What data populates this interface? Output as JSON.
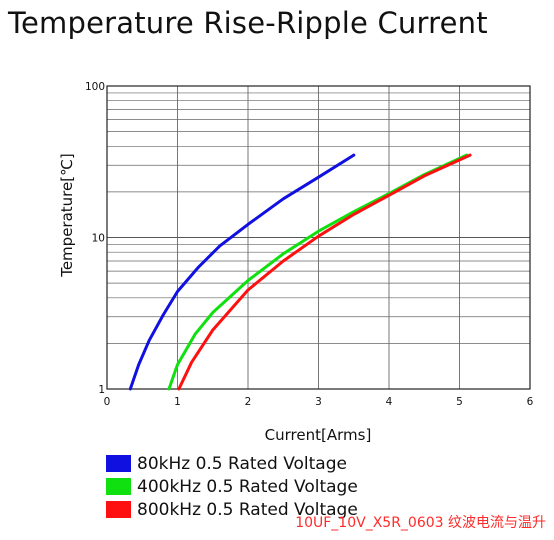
{
  "title": "Temperature Rise-Ripple Current",
  "watermark": "10UF_10V_X5R_0603 纹波电流与温升",
  "chart_data": {
    "type": "line",
    "title": "Temperature Rise-Ripple Current",
    "xlabel": "Current[Arms]",
    "ylabel": "Temperature[℃]",
    "xlim": [
      0,
      6
    ],
    "ylim": [
      1,
      100
    ],
    "yscale": "log",
    "x_ticks": [
      "0",
      "1",
      "2",
      "3",
      "4",
      "5",
      "6"
    ],
    "y_ticks": [
      "1",
      "10",
      "100"
    ],
    "grid": true,
    "legend_position": "bottom",
    "series": [
      {
        "name": "80kHz 0.5 Rated Voltage",
        "color": "#1010e0",
        "points": [
          [
            0.33,
            1.0
          ],
          [
            0.45,
            1.45
          ],
          [
            0.6,
            2.1
          ],
          [
            0.8,
            3.1
          ],
          [
            1.0,
            4.4
          ],
          [
            1.3,
            6.4
          ],
          [
            1.6,
            8.8
          ],
          [
            2.0,
            12.2
          ],
          [
            2.5,
            18.0
          ],
          [
            3.0,
            25.0
          ],
          [
            3.5,
            35.0
          ]
        ]
      },
      {
        "name": "400kHz 0.5 Rated Voltage",
        "color": "#10e010",
        "points": [
          [
            0.88,
            1.0
          ],
          [
            1.0,
            1.45
          ],
          [
            1.25,
            2.3
          ],
          [
            1.5,
            3.2
          ],
          [
            2.0,
            5.2
          ],
          [
            2.5,
            7.8
          ],
          [
            3.0,
            11.0
          ],
          [
            3.5,
            14.8
          ],
          [
            4.0,
            19.5
          ],
          [
            4.5,
            26.0
          ],
          [
            5.1,
            35.0
          ]
        ]
      },
      {
        "name": "800kHz 0.5 Rated Voltage",
        "color": "#ff1010",
        "points": [
          [
            1.02,
            1.0
          ],
          [
            1.2,
            1.5
          ],
          [
            1.5,
            2.45
          ],
          [
            2.0,
            4.5
          ],
          [
            2.5,
            7.0
          ],
          [
            3.0,
            10.2
          ],
          [
            3.5,
            14.2
          ],
          [
            4.0,
            19.0
          ],
          [
            4.5,
            25.5
          ],
          [
            5.15,
            35.0
          ]
        ]
      }
    ]
  }
}
